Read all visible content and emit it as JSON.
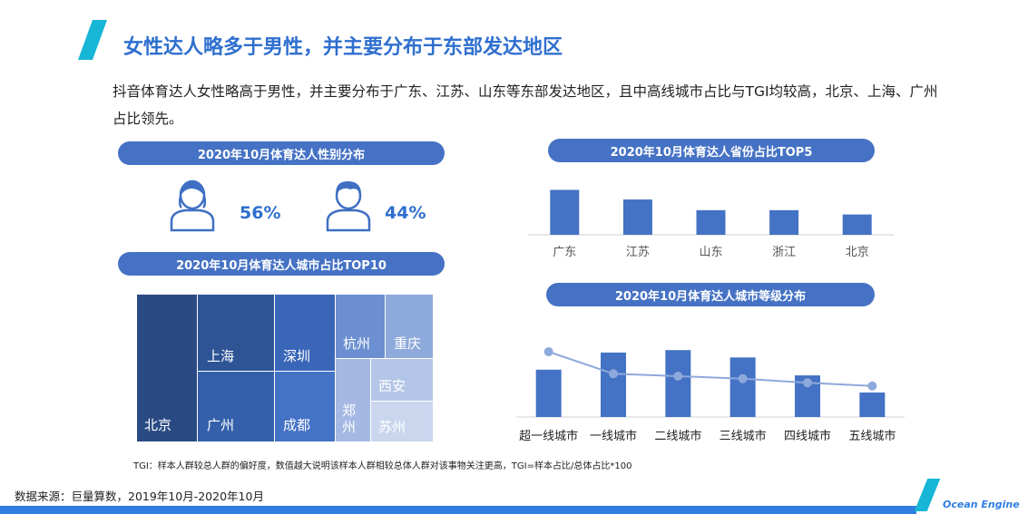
{
  "header": {
    "title": "女性达人略多于男性，并主要分布于东部发达地区",
    "description": "抖音体育达人女性略高于男性，并主要分布于广东、江苏、山东等东部发达地区，且中高线城市占比与TGI均较高，北京、上海、广州占比领先。"
  },
  "gender": {
    "title": "2020年10月体育达人性别分布",
    "female_pct": "56%",
    "male_pct": "44%"
  },
  "cities": {
    "title": "2020年10月体育达人城市占比TOP10",
    "labels": [
      "北京",
      "上海",
      "广州",
      "深圳",
      "成都",
      "杭州",
      "重庆",
      "郑州",
      "西安",
      "苏州"
    ]
  },
  "chart_data": [
    {
      "type": "bar",
      "title": "2020年10月体育达人省份占比TOP5",
      "categories": [
        "广东",
        "江苏",
        "山东",
        "浙江",
        "北京"
      ],
      "values": [
        42,
        33,
        23,
        23,
        19
      ],
      "ylim": [
        0,
        50
      ],
      "color": "#4472c4"
    },
    {
      "type": "bar",
      "title": "2020年10月体育达人城市等级分布",
      "categories": [
        "超一线城市",
        "一线城市",
        "二线城市",
        "三线城市",
        "四线城市",
        "五线城市"
      ],
      "series": [
        {
          "type": "bar",
          "values": [
            58,
            79,
            82,
            73,
            51,
            30
          ]
        },
        {
          "type": "line",
          "values": [
            80,
            53,
            50,
            47,
            42,
            38
          ]
        }
      ],
      "ylim": [
        0,
        100
      ],
      "bar_color": "#4472c4",
      "line_color": "#8ea9db"
    }
  ],
  "footnote": "TGI：样本人群较总人群的偏好度，数值越大说明该样本人群相较总体人群对该事物关注更高，TGI=样本占比/总体占比*100",
  "source": "数据来源：巨量算数，2019年10月-2020年10月",
  "brand": "Ocean Engine"
}
